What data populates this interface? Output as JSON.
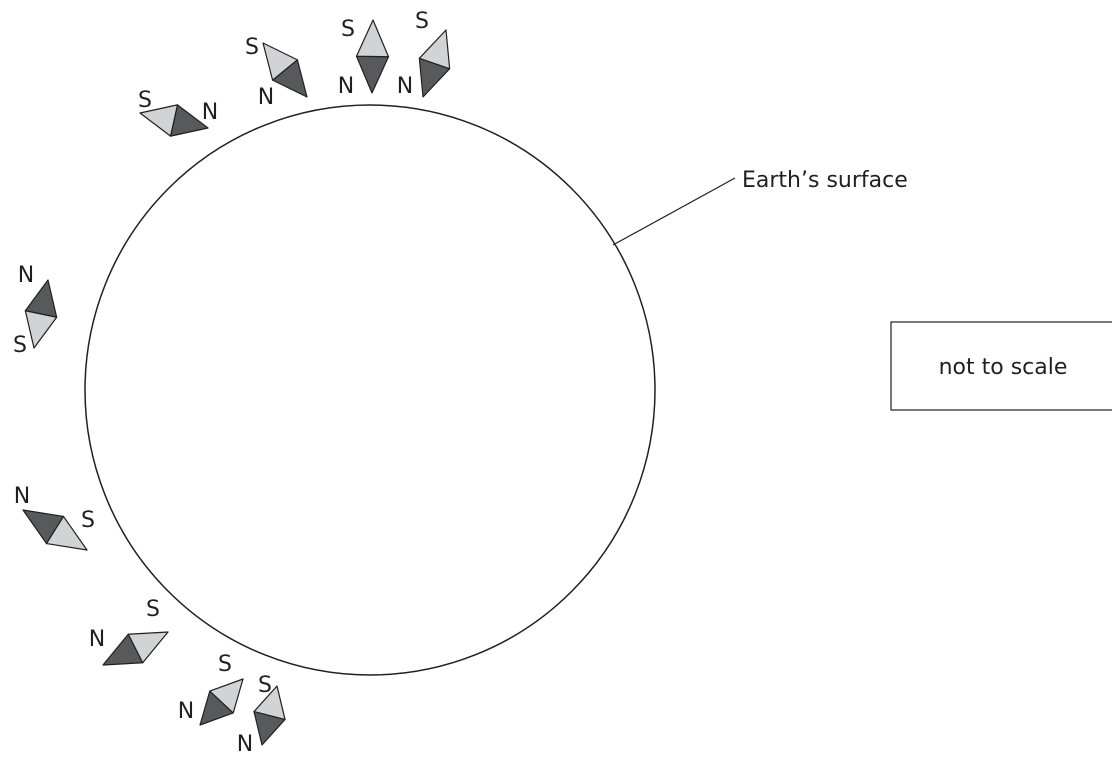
{
  "diagram": {
    "surface_label": "Earth’s surface",
    "scale_note": "not to scale",
    "compasses": [
      {
        "n": "N",
        "s": "S"
      },
      {
        "n": "N",
        "s": "S"
      },
      {
        "n": "N",
        "s": "S"
      },
      {
        "n": "N",
        "s": "S"
      },
      {
        "n": "N",
        "s": "S"
      },
      {
        "n": "N",
        "s": "S"
      },
      {
        "n": "N",
        "s": "S"
      },
      {
        "n": "N",
        "s": "S"
      },
      {
        "n": "N",
        "s": "S"
      }
    ]
  }
}
